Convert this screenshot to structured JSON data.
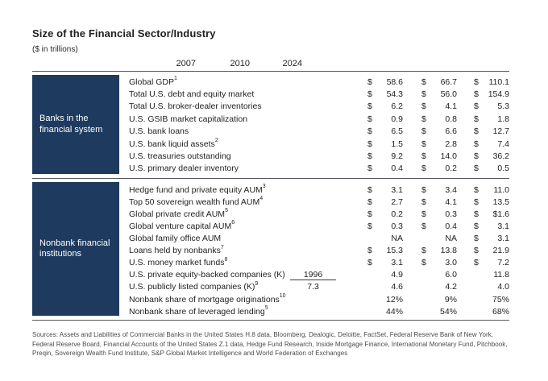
{
  "title": "Size of the Financial Sector/Industry",
  "subtitle": "($ in trillions)",
  "columns": [
    "2007",
    "2010",
    "2024"
  ],
  "colors": {
    "section_box": "#1e3a5e",
    "rule": "#54585c"
  },
  "sections": [
    {
      "box_label": "Banks in the financial system",
      "rows": [
        {
          "label": "Global GDP",
          "sup": "1",
          "cells": [
            [
              "$",
              "58.6"
            ],
            [
              "$",
              "66.7"
            ],
            [
              "$",
              "110.1"
            ]
          ]
        },
        {
          "label": "Total U.S. debt and equity market",
          "sup": "",
          "cells": [
            [
              "$",
              "54.3"
            ],
            [
              "$",
              "56.0"
            ],
            [
              "$",
              "154.9"
            ]
          ]
        },
        {
          "label": "Total U.S. broker-dealer inventories",
          "sup": "",
          "cells": [
            [
              "$",
              "6.2"
            ],
            [
              "$",
              "4.1"
            ],
            [
              "$",
              "5.3"
            ]
          ]
        },
        {
          "label": "U.S. GSIB market capitalization",
          "sup": "",
          "cells": [
            [
              "$",
              "0.9"
            ],
            [
              "$",
              "0.8"
            ],
            [
              "$",
              "1.8"
            ]
          ]
        },
        {
          "label": "U.S. bank loans",
          "sup": "",
          "cells": [
            [
              "$",
              "6.5"
            ],
            [
              "$",
              "6.6"
            ],
            [
              "$",
              "12.7"
            ]
          ]
        },
        {
          "label": "U.S. bank liquid assets",
          "sup": "2",
          "cells": [
            [
              "$",
              "1.5"
            ],
            [
              "$",
              "2.8"
            ],
            [
              "$",
              "7.4"
            ]
          ]
        },
        {
          "label": "U.S. treasuries outstanding",
          "sup": "",
          "cells": [
            [
              "$",
              "9.2"
            ],
            [
              "$",
              "14.0"
            ],
            [
              "$",
              "36.2"
            ]
          ]
        },
        {
          "label": "U.S. primary dealer inventory",
          "sup": "",
          "cells": [
            [
              "$",
              "0.4"
            ],
            [
              "$",
              "0.2"
            ],
            [
              "$",
              "0.5"
            ]
          ]
        }
      ]
    },
    {
      "box_label": "Nonbank financial institutions",
      "rows": [
        {
          "label": "Hedge fund and private equity AUM",
          "sup": "3",
          "cells": [
            [
              "$",
              "3.1"
            ],
            [
              "$",
              "3.4"
            ],
            [
              "$",
              "11.0"
            ]
          ]
        },
        {
          "label": "Top 50 sovereign wealth fund AUM",
          "sup": "4",
          "cells": [
            [
              "$",
              "2.7"
            ],
            [
              "$",
              "4.1"
            ],
            [
              "$",
              "13.5"
            ]
          ]
        },
        {
          "label": "Global private credit AUM",
          "sup": "5",
          "cells": [
            [
              "$",
              "0.2"
            ],
            [
              "$",
              "0.3"
            ],
            [
              "$",
              "$1.6"
            ]
          ]
        },
        {
          "label": "Global venture capital AUM",
          "sup": "6",
          "cells": [
            [
              "$",
              "0.3"
            ],
            [
              "$",
              "0.4"
            ],
            [
              "$",
              "3.1"
            ]
          ]
        },
        {
          "label": "Global family office AUM",
          "sup": "",
          "cells": [
            [
              "",
              "NA"
            ],
            [
              "",
              "NA"
            ],
            [
              "$",
              "3.1"
            ]
          ]
        },
        {
          "label": "Loans held by nonbanks",
          "sup": "7",
          "cells": [
            [
              "$",
              "15.3"
            ],
            [
              "$",
              "13.8"
            ],
            [
              "$",
              "21.9"
            ]
          ]
        },
        {
          "label": "U.S. money market funds",
          "sup": "8",
          "cells": [
            [
              "$",
              "3.1"
            ],
            [
              "$",
              "3.0"
            ],
            [
              "$",
              "7.2"
            ]
          ]
        },
        {
          "label": "U.S. private equity-backed companies (K)",
          "sup": "",
          "mini": {
            "text": "1996",
            "underline": true
          },
          "cells": [
            [
              "",
              "4.9"
            ],
            [
              "",
              "6.0"
            ],
            [
              "",
              "11.8"
            ]
          ]
        },
        {
          "label": "U.S. publicly listed companies (K)",
          "sup": "9",
          "mini": {
            "text": "7.3",
            "underline": false
          },
          "cells": [
            [
              "",
              "4.6"
            ],
            [
              "",
              "4.2"
            ],
            [
              "",
              "4.0"
            ]
          ]
        },
        {
          "label": "Nonbank share of mortgage originations",
          "sup": "10",
          "cells": [
            [
              "",
              "12%"
            ],
            [
              "",
              "9%"
            ],
            [
              "",
              "75%"
            ]
          ]
        },
        {
          "label": "Nonbank share of leveraged lending",
          "sup": "5",
          "cells": [
            [
              "",
              "44%"
            ],
            [
              "",
              "54%"
            ],
            [
              "",
              "68%"
            ]
          ]
        }
      ]
    }
  ],
  "footer": "Sources: Assets and Liabilities of Commercial Banks in the United States H.8 data, Bloomberg, Dealogic, Deloitte, FactSet, Federal Reserve Bank of New York, Federal Reserve Board, Financial Accounts of the United States Z.1 data, Hedge Fund Research, Inside Mortgage Finance, International Monetary Fund, Pitchbook, Preqin, Sovereign Wealth Fund Institute, S&P Global Market Intelligence and World Federation of Exchanges"
}
